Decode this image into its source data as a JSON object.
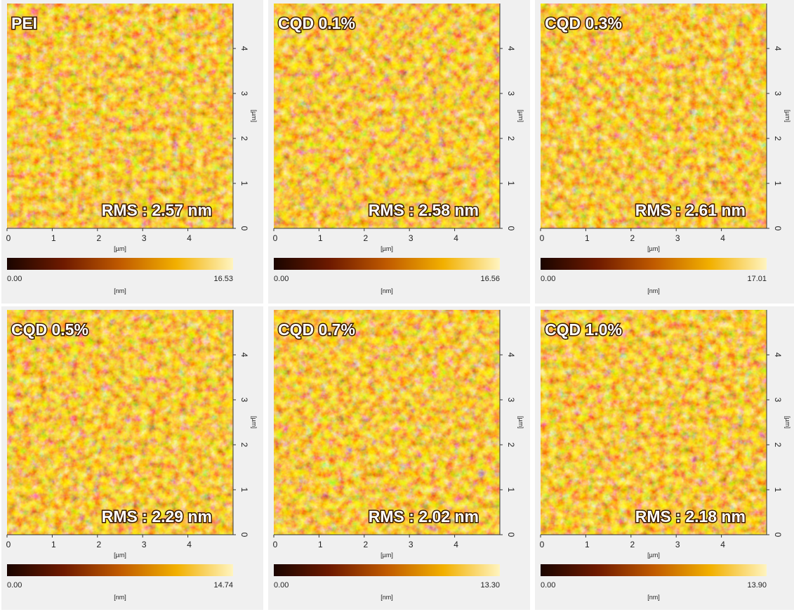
{
  "x_ticks": [
    0,
    1,
    2,
    3,
    4
  ],
  "y_ticks": [
    0,
    1,
    2,
    3,
    4
  ],
  "length_unit": "[µm]",
  "height_unit": "[nm]",
  "panels": [
    {
      "label": "PEI",
      "rms": "RMS : 2.57 nm",
      "colorbar_min": "0.00",
      "colorbar_max": "16.53"
    },
    {
      "label": "CQD 0.1%",
      "rms": "RMS : 2.58 nm",
      "colorbar_min": "0.00",
      "colorbar_max": "16.56"
    },
    {
      "label": "CQD 0.3%",
      "rms": "RMS : 2.61 nm",
      "colorbar_min": "0.00",
      "colorbar_max": "17.01"
    },
    {
      "label": "CQD 0.5%",
      "rms": "RMS : 2.29 nm",
      "colorbar_min": "0.00",
      "colorbar_max": "14.74"
    },
    {
      "label": "CQD 0.7%",
      "rms": "RMS : 2.02 nm",
      "colorbar_min": "0.00",
      "colorbar_max": "13.30"
    },
    {
      "label": "CQD 1.0%",
      "rms": "RMS : 2.18 nm",
      "colorbar_min": "0.00",
      "colorbar_max": "13.90"
    }
  ]
}
